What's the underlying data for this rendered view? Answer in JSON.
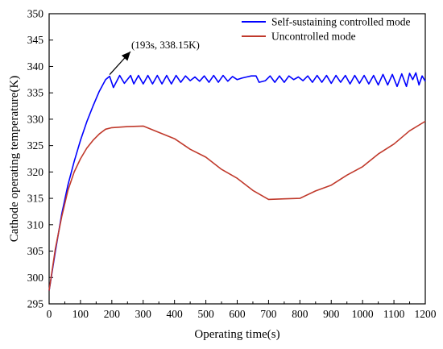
{
  "chart_data": {
    "type": "line",
    "xlabel": "Operating time(s)",
    "ylabel": "Cathode operating temperature(K)",
    "xlim": [
      0,
      1200
    ],
    "ylim": [
      295,
      350
    ],
    "xticks": [
      0,
      100,
      200,
      300,
      400,
      500,
      600,
      700,
      800,
      900,
      1000,
      1100,
      1200
    ],
    "yticks": [
      295,
      300,
      305,
      310,
      315,
      320,
      325,
      330,
      335,
      340,
      345,
      350
    ],
    "grid": false,
    "legend_position": "top-right",
    "annotation": {
      "text": "(193s, 338.15K)",
      "x": 193,
      "y": 338.15
    },
    "series": [
      {
        "name": "Self-sustaining controlled mode",
        "color": "#0000ff",
        "x": [
          0,
          20,
          40,
          60,
          80,
          100,
          120,
          140,
          160,
          180,
          193,
          205,
          225,
          240,
          260,
          270,
          285,
          300,
          315,
          330,
          345,
          360,
          375,
          390,
          405,
          420,
          435,
          450,
          465,
          480,
          495,
          510,
          525,
          540,
          555,
          570,
          585,
          600,
          615,
          630,
          645,
          660,
          670,
          690,
          705,
          720,
          735,
          750,
          765,
          780,
          795,
          810,
          825,
          840,
          855,
          870,
          885,
          900,
          915,
          930,
          945,
          960,
          975,
          990,
          1005,
          1020,
          1035,
          1050,
          1065,
          1080,
          1095,
          1110,
          1125,
          1140,
          1150,
          1160,
          1170,
          1180,
          1190,
          1200
        ],
        "y": [
          297.5,
          305,
          312,
          317.5,
          322,
          326,
          329.5,
          332.5,
          335.3,
          337.5,
          338.15,
          336,
          338.3,
          336.8,
          338.3,
          336.7,
          338.3,
          336.7,
          338.3,
          336.7,
          338.3,
          336.7,
          338.3,
          336.7,
          338.3,
          337,
          338.2,
          337.3,
          338,
          337.2,
          338.2,
          337,
          338.3,
          337,
          338.3,
          337.2,
          338.1,
          337.5,
          337.8,
          338,
          338.2,
          338.2,
          337,
          337.3,
          338.2,
          337,
          338.2,
          337,
          338.2,
          337.5,
          338,
          337.3,
          338.2,
          337,
          338.3,
          337,
          338.3,
          336.8,
          338.3,
          337,
          338.3,
          336.7,
          338.3,
          336.8,
          338.3,
          336.7,
          338.3,
          336.5,
          338.5,
          336.5,
          338.5,
          336.2,
          338.6,
          336.2,
          338.7,
          337.5,
          338.8,
          336.5,
          338.2,
          337.2
        ]
      },
      {
        "name": "Uncontrolled mode",
        "color": "#c0392b",
        "x": [
          0,
          20,
          40,
          60,
          80,
          100,
          120,
          140,
          160,
          180,
          200,
          250,
          300,
          350,
          400,
          450,
          500,
          550,
          600,
          650,
          700,
          750,
          800,
          850,
          900,
          950,
          1000,
          1050,
          1100,
          1150,
          1200
        ],
        "y": [
          297.5,
          305.5,
          311.5,
          316.5,
          320,
          322.5,
          324.5,
          326,
          327.2,
          328.1,
          328.4,
          328.6,
          328.7,
          327.5,
          326.3,
          324.3,
          322.8,
          320.5,
          318.8,
          316.5,
          314.8,
          314.9,
          315,
          316.4,
          317.5,
          319.4,
          321,
          323.4,
          325.3,
          327.8,
          329.6
        ]
      }
    ]
  }
}
